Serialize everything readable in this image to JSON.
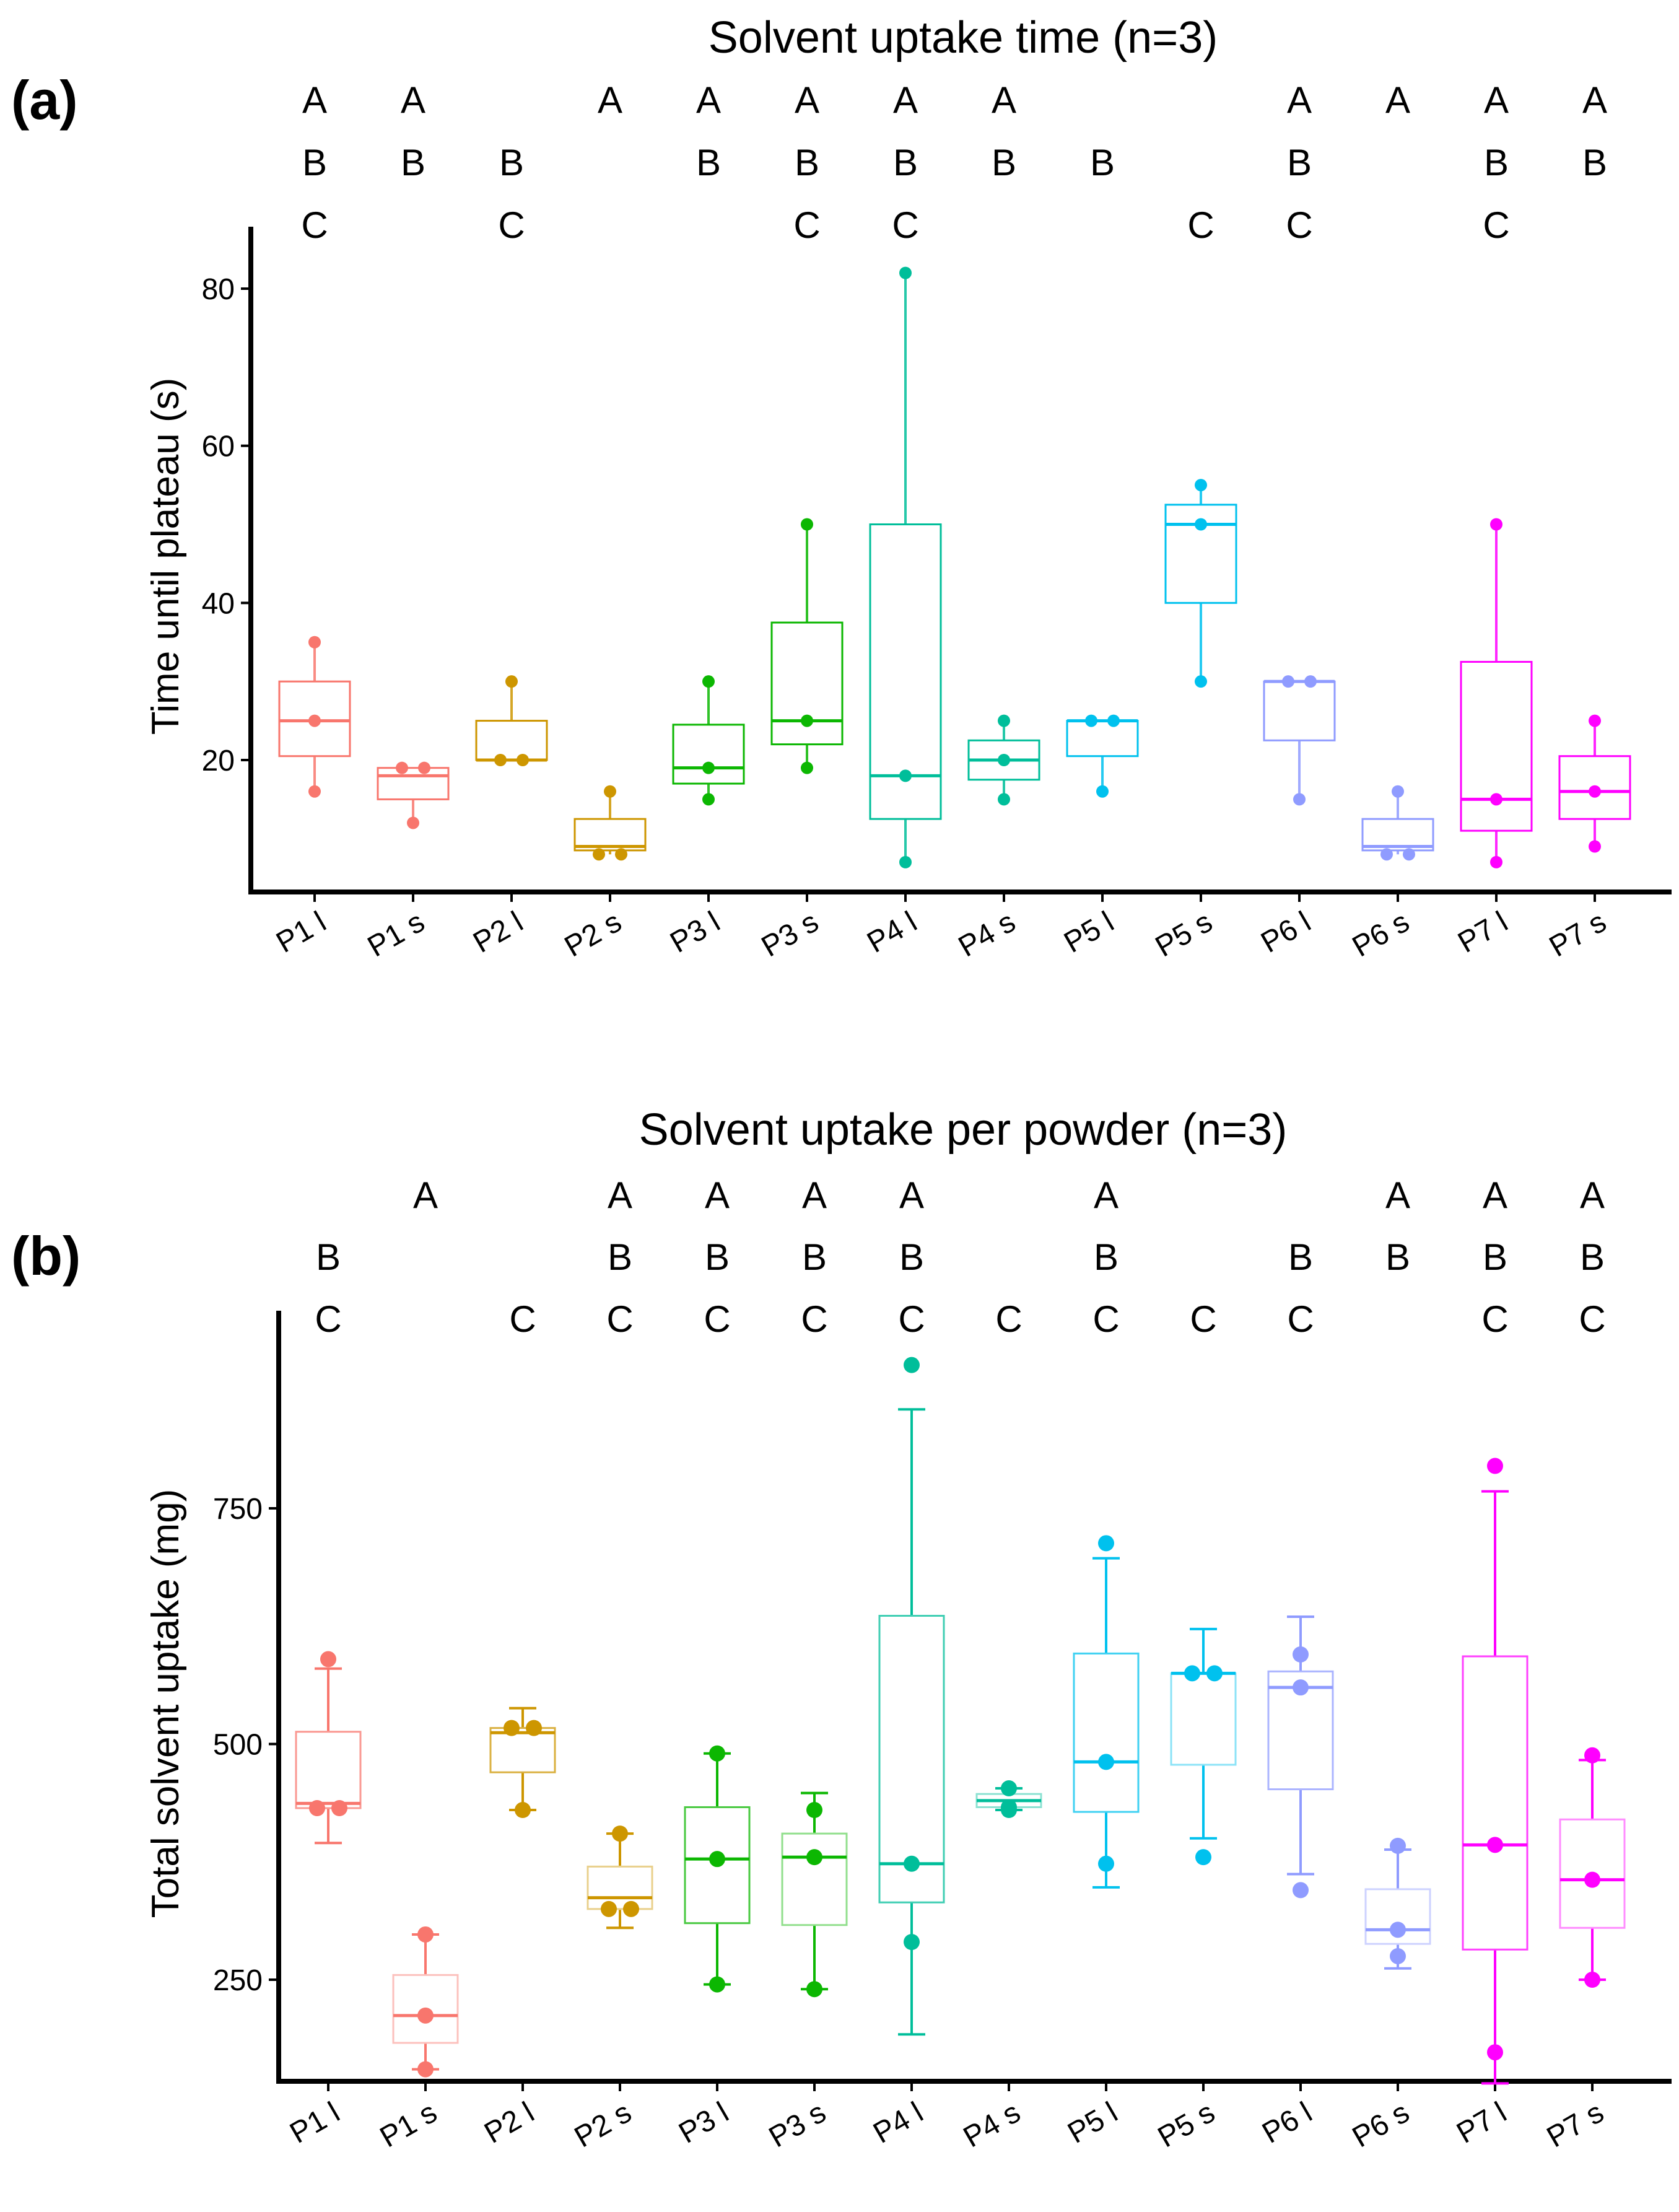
{
  "chart_data": [
    {
      "panel": "(a)",
      "type": "box",
      "title": "Solvent uptake time (n=3)",
      "ylabel": "Time until plateau (s)",
      "xlabel": "",
      "ylim": [
        5,
        87
      ],
      "yticks": [
        20,
        40,
        60,
        80
      ],
      "categories": [
        "P1 l",
        "P1 s",
        "P2 l",
        "P2 s",
        "P3 l",
        "P3 s",
        "P4 l",
        "P4 s",
        "P5 l",
        "P5 s",
        "P6 l",
        "P6 s",
        "P7 l",
        "P7 s"
      ],
      "colors": [
        "#F8766D",
        "#F8766D",
        "#CD9600",
        "#CD9600",
        "#0CB702",
        "#0CB702",
        "#00BE9A",
        "#00BE9A",
        "#00C1EE",
        "#00C1EE",
        "#8F9BFF",
        "#8F9BFF",
        "#FF00FF",
        "#FF00FF"
      ],
      "boxes": [
        {
          "whisker_low": 16,
          "q1": 20.5,
          "median": 25,
          "q3": 30,
          "whisker_high": 35
        },
        {
          "whisker_low": 12,
          "q1": 15,
          "median": 18,
          "q3": 19,
          "whisker_high": 19
        },
        {
          "whisker_low": 20,
          "q1": 20,
          "median": 20,
          "q3": 25,
          "whisker_high": 30
        },
        {
          "whisker_low": 8,
          "q1": 8.5,
          "median": 9,
          "q3": 12.5,
          "whisker_high": 16
        },
        {
          "whisker_low": 15,
          "q1": 17,
          "median": 19,
          "q3": 24.5,
          "whisker_high": 30
        },
        {
          "whisker_low": 19,
          "q1": 22,
          "median": 25,
          "q3": 37.5,
          "whisker_high": 50
        },
        {
          "whisker_low": 7,
          "q1": 12.5,
          "median": 18,
          "q3": 50,
          "whisker_high": 82
        },
        {
          "whisker_low": 15,
          "q1": 17.5,
          "median": 20,
          "q3": 22.5,
          "whisker_high": 25
        },
        {
          "whisker_low": 16,
          "q1": 20.5,
          "median": 25,
          "q3": 25,
          "whisker_high": 25
        },
        {
          "whisker_low": 30,
          "q1": 40,
          "median": 50,
          "q3": 52.5,
          "whisker_high": 55
        },
        {
          "whisker_low": 15,
          "q1": 22.5,
          "median": 30,
          "q3": 30,
          "whisker_high": 30
        },
        {
          "whisker_low": 8,
          "q1": 8.5,
          "median": 9,
          "q3": 12.5,
          "whisker_high": 16
        },
        {
          "whisker_low": 7,
          "q1": 11,
          "median": 15,
          "q3": 32.5,
          "whisker_high": 50
        },
        {
          "whisker_low": 9,
          "q1": 12.5,
          "median": 16,
          "q3": 20.5,
          "whisker_high": 25
        }
      ],
      "points": [
        [
          16,
          25,
          35
        ],
        [
          12,
          19,
          19
        ],
        [
          20,
          20,
          30
        ],
        [
          8,
          8,
          16
        ],
        [
          15,
          19,
          30
        ],
        [
          19,
          25,
          50
        ],
        [
          7,
          18,
          82
        ],
        [
          15,
          20,
          25
        ],
        [
          16,
          25,
          25
        ],
        [
          30,
          50,
          55
        ],
        [
          15,
          30,
          30
        ],
        [
          8,
          8,
          16
        ],
        [
          7,
          15,
          50
        ],
        [
          9,
          16,
          25
        ]
      ],
      "letters": [
        [
          "A",
          "B",
          "C"
        ],
        [
          "A",
          "B",
          ""
        ],
        [
          "",
          "B",
          "C"
        ],
        [
          "A",
          "",
          ""
        ],
        [
          "A",
          "B",
          ""
        ],
        [
          "A",
          "B",
          "C"
        ],
        [
          "A",
          "B",
          "C"
        ],
        [
          "A",
          "B",
          ""
        ],
        [
          "",
          "B",
          ""
        ],
        [
          "",
          "",
          "C"
        ],
        [
          "A",
          "B",
          "C"
        ],
        [
          "A",
          "",
          ""
        ],
        [
          "A",
          "B",
          "C"
        ],
        [
          "A",
          "B",
          ""
        ]
      ]
    },
    {
      "panel": "(b)",
      "type": "box",
      "title": "Solvent uptake per powder (n=3)",
      "ylabel": "Total solvent uptake (mg)",
      "xlabel": "",
      "ylim": [
        100,
        1000
      ],
      "yticks": [
        250,
        500,
        750
      ],
      "categories": [
        "P1 l",
        "P1 s",
        "P2 l",
        "P2 s",
        "P3 l",
        "P3 s",
        "P4 l",
        "P4 s",
        "P5 l",
        "P5 s",
        "P6 l",
        "P6 s",
        "P7 l",
        "P7 s"
      ],
      "colors": [
        "#F8766D",
        "#F8766D",
        "#CD9600",
        "#CD9600",
        "#0CB702",
        "#0CB702",
        "#00BE9A",
        "#00BE9A",
        "#00C1EE",
        "#00C1EE",
        "#8F9BFF",
        "#8F9BFF",
        "#FF00FF",
        "#FF00FF"
      ],
      "boxes": [
        {
          "whisker_low": 395,
          "q1": 432,
          "median": 437,
          "q3": 513,
          "whisker_high": 580
        },
        {
          "whisker_low": 155,
          "q1": 183,
          "median": 212,
          "q3": 255,
          "whisker_high": 298
        },
        {
          "whisker_low": 430,
          "q1": 470,
          "median": 512,
          "q3": 517,
          "whisker_high": 538
        },
        {
          "whisker_low": 305,
          "q1": 325,
          "median": 337,
          "q3": 370,
          "whisker_high": 405
        },
        {
          "whisker_low": 245,
          "q1": 310,
          "median": 378,
          "q3": 433,
          "whisker_high": 490
        },
        {
          "whisker_low": 240,
          "q1": 308,
          "median": 380,
          "q3": 405,
          "whisker_high": 448
        },
        {
          "whisker_low": 192,
          "q1": 332,
          "median": 373,
          "q3": 636,
          "whisker_high": 855
        },
        {
          "whisker_low": 430,
          "q1": 433,
          "median": 440,
          "q3": 447,
          "whisker_high": 453
        },
        {
          "whisker_low": 348,
          "q1": 428,
          "median": 481,
          "q3": 596,
          "whisker_high": 697
        },
        {
          "whisker_low": 400,
          "q1": 478,
          "median": 575,
          "q3": 575,
          "whisker_high": 622
        },
        {
          "whisker_low": 362,
          "q1": 452,
          "median": 560,
          "q3": 577,
          "whisker_high": 635
        },
        {
          "whisker_low": 262,
          "q1": 288,
          "median": 303,
          "q3": 346,
          "whisker_high": 388
        },
        {
          "whisker_low": 140,
          "q1": 282,
          "median": 393,
          "q3": 593,
          "whisker_high": 768
        },
        {
          "whisker_low": 250,
          "q1": 305,
          "median": 356,
          "q3": 420,
          "whisker_high": 483
        }
      ],
      "points": [
        [
          432,
          432,
          590
        ],
        [
          155,
          212,
          298
        ],
        [
          430,
          517,
          517
        ],
        [
          325,
          325,
          405
        ],
        [
          245,
          378,
          490
        ],
        [
          240,
          380,
          430
        ],
        [
          290,
          373,
          902
        ],
        [
          430,
          433,
          453
        ],
        [
          373,
          481,
          713
        ],
        [
          380,
          575,
          575
        ],
        [
          345,
          560,
          595
        ],
        [
          275,
          303,
          392
        ],
        [
          173,
          393,
          795
        ],
        [
          250,
          356,
          488
        ]
      ],
      "letters": [
        [
          "",
          "B",
          "C"
        ],
        [
          "A",
          "",
          ""
        ],
        [
          "",
          "",
          "C"
        ],
        [
          "A",
          "B",
          "C"
        ],
        [
          "A",
          "B",
          "C"
        ],
        [
          "A",
          "B",
          "C"
        ],
        [
          "A",
          "B",
          "C"
        ],
        [
          "",
          "",
          "C"
        ],
        [
          "A",
          "B",
          "C"
        ],
        [
          "",
          "",
          "C"
        ],
        [
          "",
          "B",
          "C"
        ],
        [
          "A",
          "B",
          ""
        ],
        [
          "A",
          "B",
          "C"
        ],
        [
          "A",
          "B",
          "C"
        ]
      ]
    }
  ]
}
